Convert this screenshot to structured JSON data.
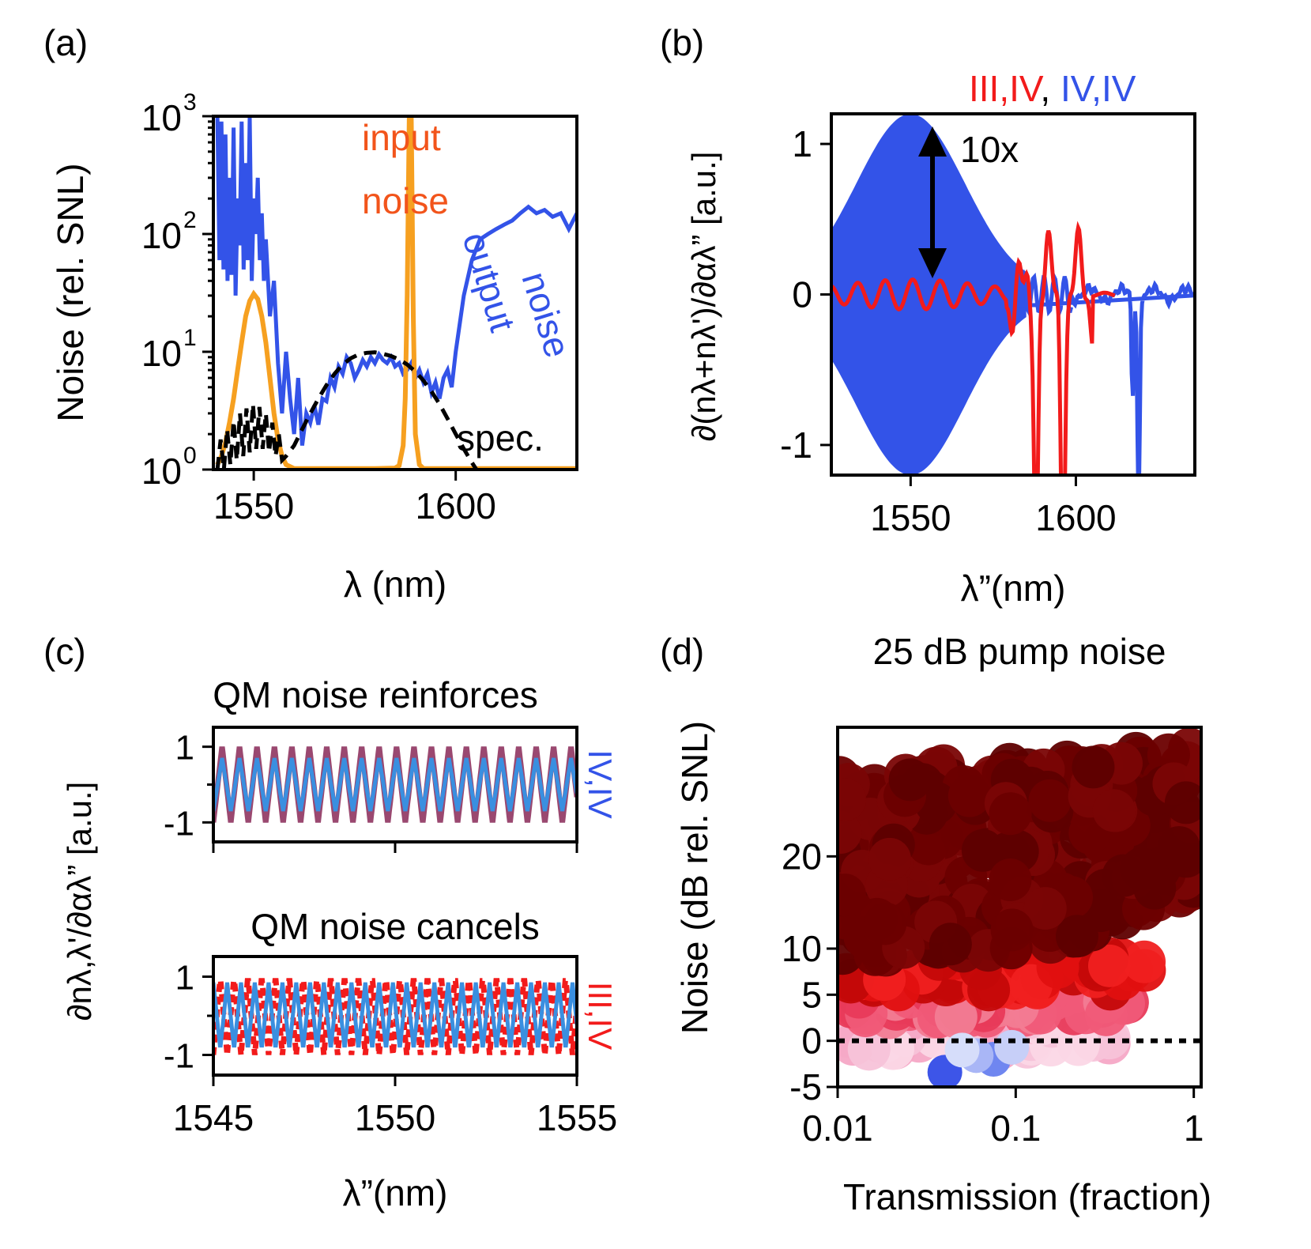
{
  "colors": {
    "blue": "#3353e8",
    "red": "#f21b1b",
    "orange": "#f6a020",
    "input_label": "#f2541b",
    "black": "#000000",
    "lightblue": "#3a8fe0",
    "purple": "#9a4870",
    "darkred": "#6b0000"
  },
  "chart_data": [
    {
      "panel": "(a)",
      "type": "line",
      "xlabel": "λ (nm)",
      "ylabel": "Noise (rel. SNL)",
      "xlim": [
        1540,
        1630
      ],
      "ylim": [
        1,
        1000
      ],
      "yscale": "log",
      "xticks": [
        1550,
        1600
      ],
      "xtick_labels": [
        "1550",
        "1600"
      ],
      "ytick_base": "10",
      "ytick_exponents": [
        "0",
        "1",
        "2",
        "3"
      ],
      "series_labels": {
        "input": [
          "input",
          "noise"
        ],
        "output": [
          "output",
          "noise"
        ],
        "spec": "spec."
      },
      "series": [
        {
          "key": "output",
          "color": "#3353e8",
          "x": [
            1541,
            1541.5,
            1542,
            1542.5,
            1543,
            1543.5,
            1544,
            1544.5,
            1545,
            1545.5,
            1546,
            1546.5,
            1547,
            1547.5,
            1548,
            1548.5,
            1549,
            1549.5,
            1550,
            1550.5,
            1551,
            1551.5,
            1552,
            1552.5,
            1553,
            1554,
            1555,
            1556,
            1557,
            1558,
            1559,
            1560,
            1561,
            1562,
            1563,
            1564,
            1565,
            1566,
            1567,
            1568,
            1569,
            1570,
            1571,
            1572,
            1573,
            1574,
            1575,
            1576,
            1577,
            1578,
            1579,
            1580,
            1581,
            1582,
            1583,
            1584,
            1585,
            1586,
            1587,
            1588,
            1589,
            1590,
            1591,
            1592,
            1593,
            1594,
            1595,
            1596,
            1597,
            1598,
            1599,
            1600,
            1602,
            1604,
            1606,
            1608,
            1610,
            1612,
            1614,
            1616,
            1618,
            1620,
            1622,
            1624,
            1626,
            1628,
            1630
          ],
          "y": [
            1000,
            60,
            900,
            50,
            700,
            40,
            300,
            45,
            800,
            30,
            200,
            80,
            900,
            50,
            400,
            60,
            1000,
            40,
            200,
            100,
            300,
            60,
            150,
            40,
            90,
            20,
            40,
            8,
            3,
            10,
            4,
            2,
            6,
            1.6,
            3,
            2.5,
            3.5,
            2.4,
            4,
            3.8,
            6,
            5,
            7.5,
            6.5,
            9,
            8,
            6,
            7,
            8.5,
            7.5,
            9,
            8,
            9.5,
            8.5,
            8,
            9,
            7.5,
            8,
            6.5,
            7,
            8,
            6,
            7,
            5.5,
            6.5,
            4.5,
            5.5,
            4,
            6,
            7,
            5,
            10,
            30,
            60,
            90,
            100,
            110,
            120,
            130,
            150,
            170,
            150,
            160,
            140,
            150,
            110,
            150
          ]
        },
        {
          "key": "input",
          "color": "#f6a020",
          "x": [
            1541,
            1542,
            1543,
            1544,
            1545,
            1546,
            1547,
            1548,
            1549,
            1550,
            1551,
            1552,
            1553,
            1554,
            1555,
            1556,
            1557,
            1558,
            1560,
            1565,
            1570,
            1575,
            1580,
            1585,
            1586,
            1587,
            1587.5,
            1588,
            1588.5,
            1589,
            1589.5,
            1590,
            1591,
            1592,
            1600,
            1610,
            1620,
            1630
          ],
          "y": [
            1.1,
            1.3,
            1.7,
            2.5,
            4,
            7,
            12,
            20,
            27,
            31,
            28,
            20,
            12,
            6,
            3,
            1.8,
            1.3,
            1.1,
            1.02,
            1.02,
            1.02,
            1.02,
            1.02,
            1.03,
            1.08,
            1.6,
            4,
            30,
            1000,
            1000,
            20,
            2,
            1.1,
            1.02,
            1.02,
            1.02,
            1.02,
            1.02
          ]
        },
        {
          "key": "spec",
          "color": "#000000",
          "x": [
            1541,
            1541.8,
            1542.6,
            1543.4,
            1544.2,
            1545,
            1545.8,
            1546.6,
            1547.4,
            1548.2,
            1549,
            1549.8,
            1550.6,
            1551.4,
            1552.2,
            1553,
            1553.8,
            1554.6,
            1555.4,
            1556.2,
            1557,
            1558,
            1560,
            1562,
            1564,
            1566,
            1568,
            1570,
            1572,
            1574,
            1576,
            1578,
            1580,
            1582,
            1584,
            1586,
            1588,
            1590,
            1592,
            1594,
            1596,
            1598,
            1600,
            1602,
            1604,
            1606,
            1608
          ],
          "y": [
            1,
            1.8,
            1,
            2.2,
            1.1,
            2.6,
            1.2,
            3,
            1.3,
            3.3,
            1.4,
            3.6,
            1.5,
            3.4,
            1.5,
            3,
            1.4,
            2.5,
            1.3,
            2,
            1.2,
            1.3,
            1.6,
            2.2,
            3,
            4,
            5.2,
            6.5,
            7.8,
            8.8,
            9.5,
            9.8,
            9.9,
            9.6,
            9.2,
            8.6,
            7.8,
            6.8,
            5.7,
            4.6,
            3.6,
            2.7,
            2,
            1.5,
            1.15,
            0.9,
            0.7
          ]
        }
      ]
    },
    {
      "panel": "(b)",
      "type": "line",
      "xlabel": "λ”(nm)",
      "ylabel": "∂(nλ+nλ')/∂αλ” [a.u.]",
      "xlim": [
        1526,
        1636
      ],
      "ylim": [
        -1.2,
        1.2
      ],
      "xticks": [
        1550,
        1600
      ],
      "xtick_labels": [
        "1550",
        "1600"
      ],
      "yticks": [
        -1,
        0,
        1
      ],
      "ytick_labels": [
        "-1",
        "0",
        "1"
      ],
      "legend": {
        "a": "III,IV",
        "sep": ", ",
        "b": "IV,IV"
      },
      "annotation": "10x",
      "series": [
        {
          "key": "IV,IV",
          "color": "#3353e8",
          "envelope_center": 1550,
          "envelope_peak": 1.17,
          "envelope_width": 16,
          "features_x": [
            1617,
            1619
          ]
        },
        {
          "key": "III,IV",
          "color": "#f21b1b",
          "envelope_center": 1550,
          "envelope_peak": 0.09,
          "features_x": [
            1588,
            1596
          ]
        }
      ]
    },
    {
      "panel": "(c)",
      "type": "line",
      "xlabel": "λ”(nm)",
      "ylabel": "∂nλ,λ'/∂αλ” [a.u.]",
      "xlim": [
        1545,
        1555
      ],
      "xticks": [
        1545,
        1550,
        1555
      ],
      "xtick_labels": [
        "1545",
        "1550",
        "1555"
      ],
      "yticks": [
        -1,
        1
      ],
      "ytick_labels": [
        "-1",
        "1"
      ],
      "subplots": [
        {
          "title": "QM noise reinforces",
          "side_label": "IV,IV",
          "side_color": "#3353e8",
          "period": 0.48,
          "amplitude_a": 1.0,
          "amplitude_b": 0.7,
          "phase_offset": 0
        },
        {
          "title": "QM noise cancels",
          "side_label": "III,IV",
          "side_color": "#f21b1b",
          "period": 0.38,
          "amplitude_a": 1.0,
          "amplitude_b": 0.85,
          "phase_offset": 0.5
        }
      ]
    },
    {
      "panel": "(d)",
      "type": "scatter",
      "title": "25 dB pump noise",
      "xlabel": "Transmission (fraction)",
      "ylabel": "Noise (dB rel. SNL)",
      "xscale": "log",
      "xlim": [
        0.01,
        1.1
      ],
      "ylim": [
        -5,
        34
      ],
      "xticks": [
        0.01,
        0.1,
        1
      ],
      "xtick_labels": [
        "0.01",
        "0.1",
        "1"
      ],
      "yticks": [
        -5,
        0,
        5,
        10,
        20
      ],
      "ytick_labels": [
        "-5",
        "0",
        "5",
        "10",
        "20"
      ],
      "reference_line_y": 0,
      "points": [
        {
          "x": 0.04,
          "y": -3.4,
          "c": "#3d55e8"
        },
        {
          "x": 0.075,
          "y": -2.0,
          "c": "#6f86f0"
        },
        {
          "x": 0.06,
          "y": -1.6,
          "c": "#a9b6f6"
        },
        {
          "x": 0.05,
          "y": -1.0,
          "c": "#d6ddfa"
        },
        {
          "x": 0.095,
          "y": -0.7,
          "c": "#c7cff8"
        }
      ]
    }
  ]
}
